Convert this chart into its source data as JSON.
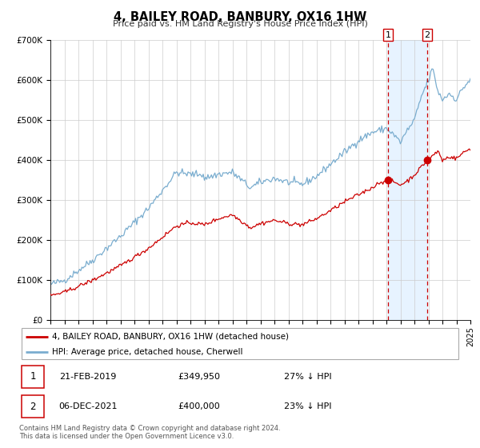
{
  "title": "4, BAILEY ROAD, BANBURY, OX16 1HW",
  "subtitle": "Price paid vs. HM Land Registry's House Price Index (HPI)",
  "ylim": [
    0,
    700000
  ],
  "xlim": [
    1995,
    2025
  ],
  "yticks": [
    0,
    100000,
    200000,
    300000,
    400000,
    500000,
    600000,
    700000
  ],
  "ytick_labels": [
    "£0",
    "£100K",
    "£200K",
    "£300K",
    "£400K",
    "£500K",
    "£600K",
    "£700K"
  ],
  "xticks": [
    1995,
    1996,
    1997,
    1998,
    1999,
    2000,
    2001,
    2002,
    2003,
    2004,
    2005,
    2006,
    2007,
    2008,
    2009,
    2010,
    2011,
    2012,
    2013,
    2014,
    2015,
    2016,
    2017,
    2018,
    2019,
    2020,
    2021,
    2022,
    2023,
    2024,
    2025
  ],
  "red_line_label": "4, BAILEY ROAD, BANBURY, OX16 1HW (detached house)",
  "blue_line_label": "HPI: Average price, detached house, Cherwell",
  "sale1_date": "21-FEB-2019",
  "sale1_price": 349950,
  "sale1_pct": "27%",
  "sale1_year": 2019.12,
  "sale2_date": "06-DEC-2021",
  "sale2_price": 400000,
  "sale2_pct": "23%",
  "sale2_year": 2021.92,
  "vline1_year": 2019.12,
  "vline2_year": 2021.92,
  "red_color": "#cc0000",
  "blue_color": "#7aadcf",
  "shade_color": "#ddeeff",
  "grid_color": "#cccccc",
  "legend_edge_color": "#aaaaaa",
  "footnote": "Contains HM Land Registry data © Crown copyright and database right 2024.\nThis data is licensed under the Open Government Licence v3.0."
}
